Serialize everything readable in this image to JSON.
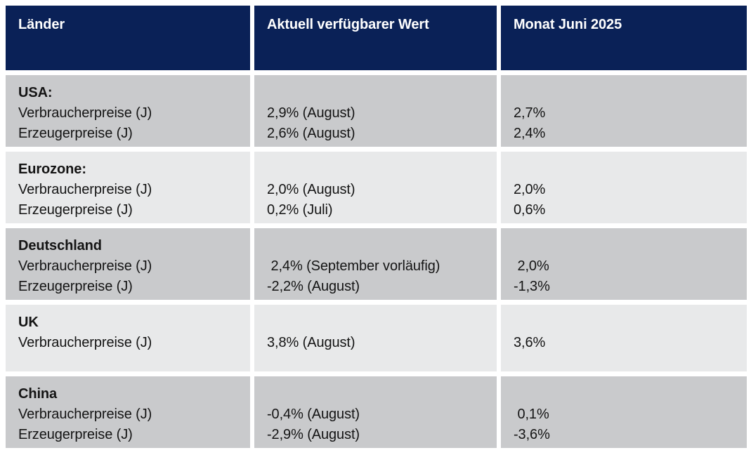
{
  "colors": {
    "header_bg": "#0a2157",
    "header_text": "#ffffff",
    "row_dark": "#c9cacc",
    "row_light": "#e8e9ea",
    "body_text": "#141414",
    "page_bg": "#ffffff"
  },
  "table": {
    "headers": [
      "Länder",
      "Aktuell verfügbarer Wert",
      "Monat Juni 2025"
    ],
    "rows": [
      {
        "country": "USA:",
        "metrics": [
          "Verbraucherpreise (J)",
          "Erzeugerpreise (J)"
        ],
        "current": [
          "2,9% (August)",
          "2,6% (August)"
        ],
        "june": [
          "2,7%",
          "2,4%"
        ]
      },
      {
        "country": "Eurozone:",
        "metrics": [
          "Verbraucherpreise (J)",
          "Erzeugerpreise (J)"
        ],
        "current": [
          "2,0% (August)",
          "0,2% (Juli)"
        ],
        "june": [
          "2,0%",
          "0,6%"
        ]
      },
      {
        "country": "Deutschland",
        "metrics": [
          "Verbraucherpreise (J)",
          "Erzeugerpreise (J)"
        ],
        "current": [
          " 2,4% (September vorläufig)",
          "-2,2% (August)"
        ],
        "june": [
          " 2,0%",
          "-1,3%"
        ]
      },
      {
        "country": "UK",
        "metrics": [
          "Verbraucherpreise (J)"
        ],
        "current": [
          "3,8% (August)"
        ],
        "june": [
          "3,6%"
        ]
      },
      {
        "country": "China",
        "metrics": [
          "Verbraucherpreise (J)",
          "Erzeugerpreise (J)"
        ],
        "current": [
          "-0,4% (August)",
          "-2,9% (August)"
        ],
        "june": [
          " 0,1%",
          "-3,6%"
        ]
      }
    ]
  }
}
